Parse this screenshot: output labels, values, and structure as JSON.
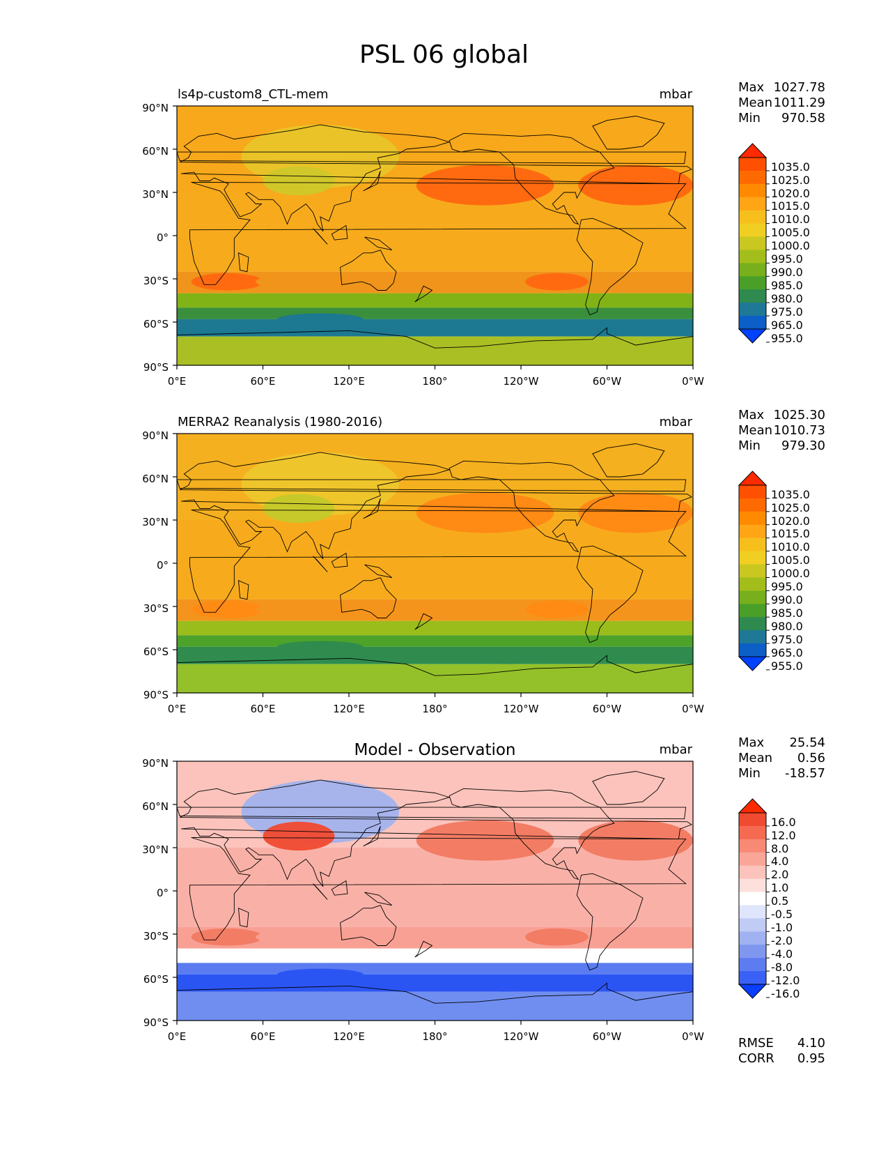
{
  "figure": {
    "title": "PSL 06 global"
  },
  "panels": [
    {
      "id": "model",
      "left_title": "ls4p-custom8_CTL-mem",
      "center_title": "",
      "units": "mbar",
      "stats": {
        "max_label": "Max",
        "max": "1027.78",
        "mean_label": "Mean",
        "mean": "1011.29",
        "min_label": "Min",
        "min": "970.58"
      },
      "colorbar": {
        "levels": [
          "1035.0",
          "1025.0",
          "1020.0",
          "1015.0",
          "1010.0",
          "1005.0",
          "1000.0",
          "995.0",
          "990.0",
          "985.0",
          "980.0",
          "975.0",
          "965.0",
          "955.0"
        ],
        "colors": [
          "#ff2a00",
          "#ff4f00",
          "#ff6a00",
          "#ff8a00",
          "#ffa516",
          "#f6bf1c",
          "#f1cf22",
          "#c9c720",
          "#a3be1a",
          "#77b01c",
          "#4a9f28",
          "#2e8a4e",
          "#1e7896",
          "#0d5fc8",
          "#0042ff"
        ]
      },
      "color_key": {
        "polar_south": "#a9bf24",
        "ice_trough": "#1d7891",
        "storm_belt": "#3a8f3d",
        "westerly": "#82b316",
        "subtropic": "#f0941b",
        "tropic": "#f7ab1c",
        "north": "#f7a81b",
        "high": "#ff6a10",
        "plateau": "#cfc82a",
        "siberia": "#e7c52a"
      }
    },
    {
      "id": "obs",
      "left_title": "MERRA2 Reanalysis (1980-2016)",
      "center_title": "",
      "units": "mbar",
      "stats": {
        "max_label": "Max",
        "max": "1025.30",
        "mean_label": "Mean",
        "mean": "1010.73",
        "min_label": "Min",
        "min": "979.30"
      },
      "colorbar": {
        "levels": [
          "1035.0",
          "1025.0",
          "1020.0",
          "1015.0",
          "1010.0",
          "1005.0",
          "1000.0",
          "995.0",
          "990.0",
          "985.0",
          "980.0",
          "975.0",
          "965.0",
          "955.0"
        ],
        "colors": [
          "#ff2a00",
          "#ff4f00",
          "#ff6a00",
          "#ff8a00",
          "#ffa516",
          "#f6bf1c",
          "#f1cf22",
          "#c9c720",
          "#a3be1a",
          "#77b01c",
          "#4a9f28",
          "#2e8a4e",
          "#1e7896",
          "#0d5fc8",
          "#0042ff"
        ]
      },
      "color_key": {
        "polar_south": "#94c12a",
        "ice_trough": "#2f8c4e",
        "storm_belt": "#4da32a",
        "westerly": "#9bbd1c",
        "subtropic": "#f5941c",
        "tropic": "#f7ab1c",
        "north": "#f5b01f",
        "high": "#ff8a14",
        "plateau": "#c4c92a",
        "siberia": "#eec82d"
      }
    },
    {
      "id": "diff",
      "left_title": "",
      "center_title": "Model - Observation",
      "units": "mbar",
      "stats": {
        "max_label": "Max",
        "max": "25.54",
        "mean_label": "Mean",
        "mean": "0.56",
        "min_label": "Min",
        "min": "-18.57"
      },
      "extra_stats": {
        "rmse_label": "RMSE",
        "rmse": "4.10",
        "corr_label": "CORR",
        "corr": "0.95"
      },
      "colorbar": {
        "levels": [
          "16.0",
          "12.0",
          "8.0",
          "4.0",
          "2.0",
          "1.0",
          "0.5",
          "-0.5",
          "-1.0",
          "-2.0",
          "-4.0",
          "-8.0",
          "-12.0",
          "-16.0"
        ],
        "colors": [
          "#ff2a00",
          "#f04a30",
          "#f56a50",
          "#f88a75",
          "#f9a699",
          "#fbc3bb",
          "#fde0dc",
          "#ffffff",
          "#dfe6fb",
          "#c0ccf6",
          "#a0b2f2",
          "#7f97ee",
          "#5d7cf0",
          "#3a61f5",
          "#0a3eff"
        ]
      },
      "color_key": {
        "polar_south": "#6f8ef0",
        "ice_trough": "#2b55f3",
        "storm_belt": "#5a7cf0",
        "westerly": "#ffffff",
        "subtropic": "#f8a094",
        "tropic": "#f9b1a7",
        "north": "#fbc3bb",
        "high": "#f37c64",
        "plateau": "#f04a30",
        "siberia": "#9db2f2"
      }
    }
  ],
  "axes": {
    "lat_ticks": [
      "90°N",
      "60°N",
      "30°N",
      "0°",
      "30°S",
      "60°S",
      "90°S"
    ],
    "lon_ticks": [
      "0°E",
      "60°E",
      "120°E",
      "180°",
      "120°W",
      "60°W",
      "0°W"
    ]
  }
}
